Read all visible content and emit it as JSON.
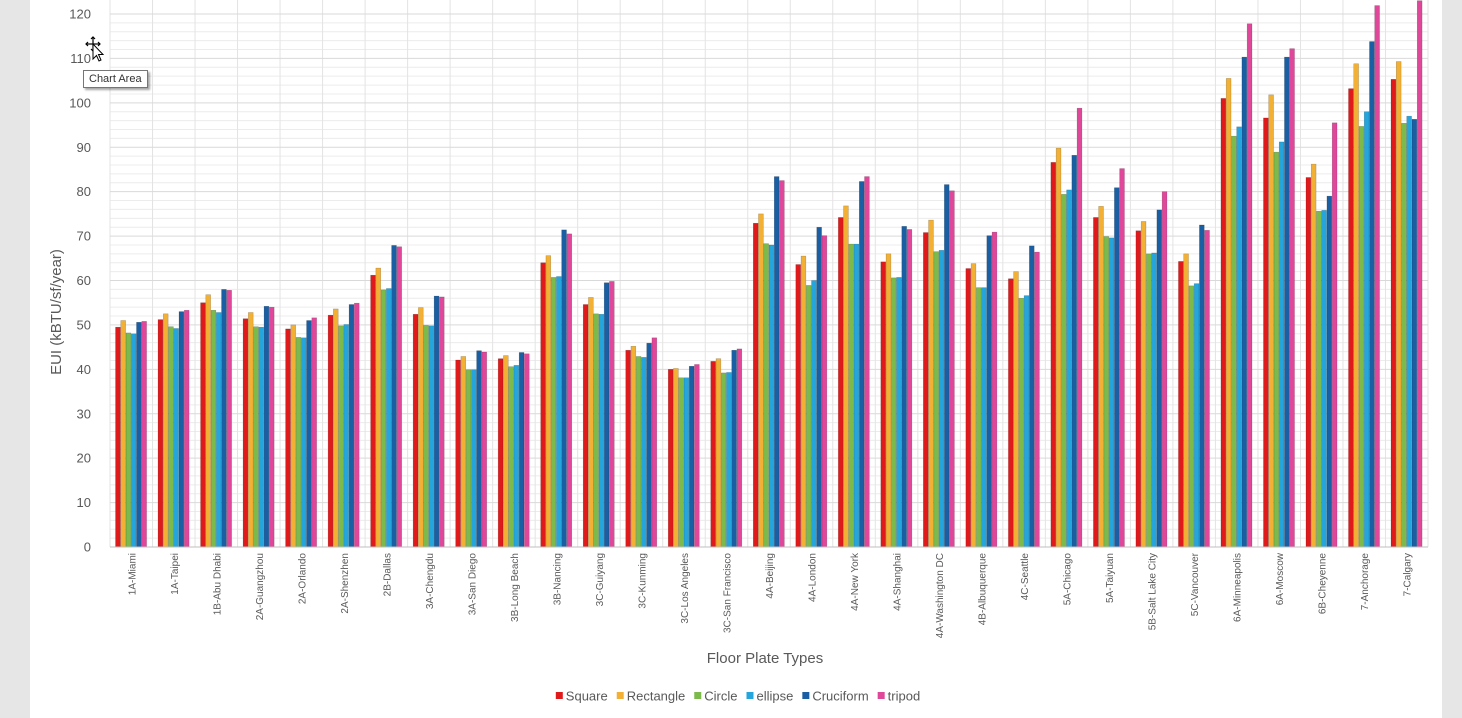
{
  "tooltip": "Chart Area",
  "chart_data": {
    "type": "bar",
    "xlabel": "Floor Plate Types",
    "ylabel": "EUI (kBTU/sf/year)",
    "ylim": [
      0,
      120
    ],
    "yticks": [
      0,
      10,
      20,
      30,
      40,
      50,
      60,
      70,
      80,
      90,
      100,
      110,
      120
    ],
    "gridlines": true,
    "legend_position": "bottom",
    "categories": [
      "1A-Miami",
      "1A-Taipei",
      "1B-Abu Dhabi",
      "2A-Guangzhou",
      "2A-Orlando",
      "2A-Shenzhen",
      "2B-Dallas",
      "3A-Chengdu",
      "3A-San Diego",
      "3B-Long Beach",
      "3B-Nancing",
      "3C-Guiyang",
      "3C-Kunming",
      "3C-Los Angeles",
      "3C-San Francisco",
      "4A-Beijing",
      "4A-London",
      "4A-New York",
      "4A-Shanghai",
      "4A-Washington DC",
      "4B-Albuquerque",
      "4C-Seattle",
      "5A-Chicago",
      "5A-Taiyuan",
      "5B-Salt Lake City",
      "5C-Vancouver",
      "6A-Minneapolis",
      "6A-Moscow",
      "6B-Cheyenne",
      "7-Anchorage",
      "7-Calgary"
    ],
    "series": [
      {
        "name": "Square",
        "color": "#e0191b",
        "values": [
          49.5,
          51.2,
          55,
          51.4,
          49.1,
          52.2,
          61.2,
          52.4,
          42.1,
          42.4,
          64,
          54.6,
          44.3,
          40,
          41.8,
          72.9,
          63.6,
          74.2,
          64.2,
          70.8,
          62.7,
          60.4,
          86.6,
          74.2,
          71.2,
          64.3,
          101,
          96.6,
          83.2,
          103.2,
          105.3
        ]
      },
      {
        "name": "Rectangle",
        "color": "#f2b035",
        "values": [
          51,
          52.5,
          56.8,
          52.8,
          50,
          53.6,
          62.8,
          53.9,
          42.9,
          43.1,
          65.6,
          56.2,
          45.2,
          40.2,
          42.4,
          75,
          65.5,
          76.8,
          66,
          73.6,
          63.8,
          62,
          89.8,
          76.7,
          73.3,
          66,
          105.5,
          101.8,
          86.2,
          108.8,
          109.3
        ]
      },
      {
        "name": "Circle",
        "color": "#7bba4b",
        "values": [
          48.2,
          49.6,
          53.3,
          49.6,
          47.2,
          49.8,
          57.9,
          49.9,
          39.9,
          40.6,
          60.7,
          52.5,
          42.9,
          38.1,
          39.2,
          68.3,
          58.9,
          68.2,
          60.6,
          66.5,
          58.4,
          56,
          79.4,
          69.9,
          66,
          58.8,
          92.5,
          88.9,
          75.6,
          94.7,
          95.4
        ]
      },
      {
        "name": "ellipse",
        "color": "#24a6dd",
        "values": [
          48,
          49.2,
          52.8,
          49.5,
          47.1,
          50.1,
          58.2,
          49.8,
          39.9,
          40.9,
          60.9,
          52.4,
          42.7,
          38.1,
          39.3,
          68,
          60,
          68.2,
          60.7,
          66.8,
          58.4,
          56.6,
          80.4,
          69.6,
          66.2,
          59.3,
          94.6,
          91.2,
          75.8,
          98,
          97
        ]
      },
      {
        "name": "Cruciform",
        "color": "#1a5fa3",
        "values": [
          50.6,
          53,
          58,
          54.2,
          51,
          54.6,
          67.9,
          56.5,
          44.2,
          43.8,
          71.4,
          59.5,
          45.9,
          40.7,
          44.3,
          83.4,
          72,
          82.3,
          72.2,
          81.6,
          70.1,
          67.8,
          88.2,
          80.9,
          75.9,
          72.5,
          110.3,
          110.3,
          79,
          113.8,
          96.3
        ]
      },
      {
        "name": "tripod",
        "color": "#e0479a",
        "values": [
          50.8,
          53.3,
          57.8,
          54,
          51.6,
          54.9,
          67.6,
          56.3,
          43.9,
          43.5,
          70.5,
          59.8,
          47.1,
          41.1,
          44.6,
          82.5,
          70.1,
          83.4,
          71.5,
          80.2,
          70.9,
          66.4,
          98.8,
          85.2,
          80,
          71.3,
          117.8,
          112.2,
          95.5,
          121.9,
          123
        ]
      }
    ]
  }
}
